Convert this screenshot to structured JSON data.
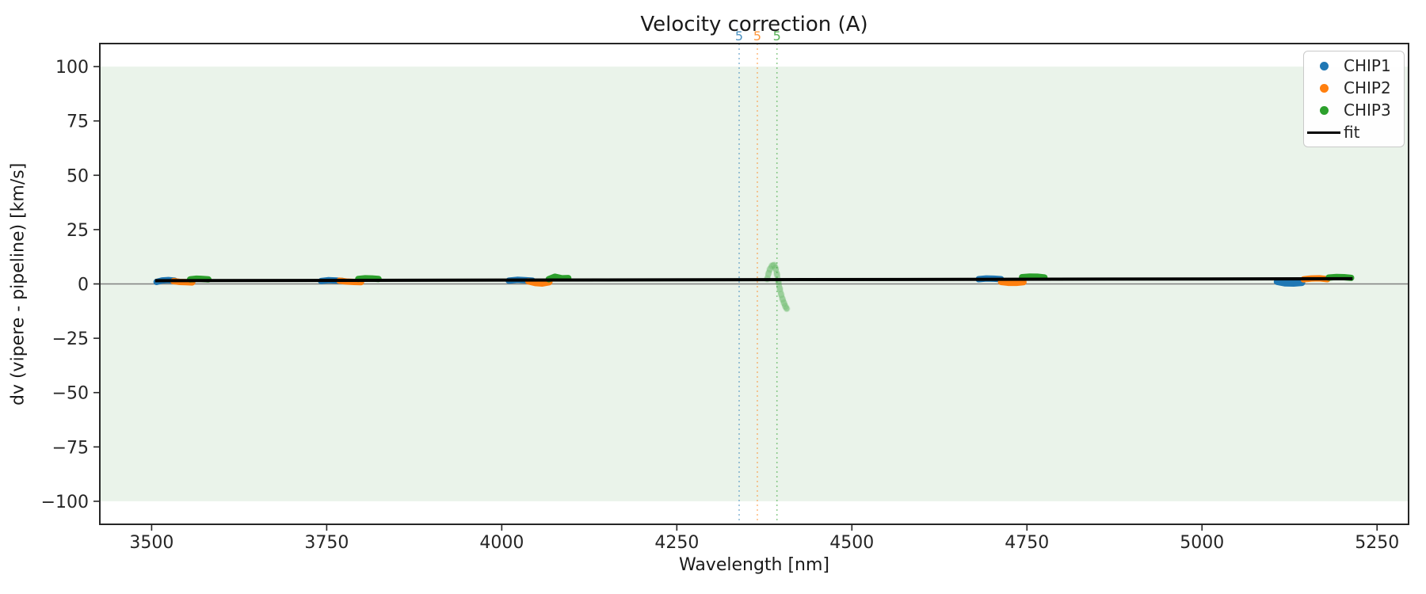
{
  "figure": {
    "background": "#ffffff"
  },
  "chart_data": {
    "type": "scatter",
    "title": "Velocity correction (A)",
    "xlabel": "Wavelength [nm]",
    "ylabel": "dv (vipere - pipeline) [km/s]",
    "xlim": [
      3426,
      5295
    ],
    "ylim": [
      -110.6,
      110.6
    ],
    "grid": false,
    "xticks": [
      {
        "value": 3500,
        "label": "3500"
      },
      {
        "value": 3750,
        "label": "3750"
      },
      {
        "value": 4000,
        "label": "4000"
      },
      {
        "value": 4250,
        "label": "4250"
      },
      {
        "value": 4500,
        "label": "4500"
      },
      {
        "value": 4750,
        "label": "4750"
      },
      {
        "value": 5000,
        "label": "5000"
      },
      {
        "value": 5250,
        "label": "5250"
      }
    ],
    "yticks": [
      {
        "value": 100,
        "label": "100"
      },
      {
        "value": 75,
        "label": "75"
      },
      {
        "value": 50,
        "label": "50"
      },
      {
        "value": 25,
        "label": "25"
      },
      {
        "value": 0,
        "label": "0"
      },
      {
        "value": -25,
        "label": "−25"
      },
      {
        "value": -50,
        "label": "−50"
      },
      {
        "value": -75,
        "label": "−75"
      },
      {
        "value": -100,
        "label": "−100"
      }
    ],
    "band": {
      "ymin": -100,
      "ymax": 100,
      "color": "#eaf3ea"
    },
    "zero_line": {
      "y": 0,
      "color": "#7f7f7f"
    },
    "order_markers": [
      {
        "label": "5",
        "x": 4339,
        "color": "#1f77b4"
      },
      {
        "label": "5",
        "x": 4365,
        "color": "#ff7f0e"
      },
      {
        "label": "5",
        "x": 4393,
        "color": "#2ca02c"
      }
    ],
    "series": [
      {
        "name": "CHIP1",
        "color": "#1f77b4",
        "marker": "dot",
        "segments": [
          {
            "x": [
              3507,
              3515,
              3524,
              3533
            ],
            "y": [
              0.9,
              1.6,
              1.8,
              1.5
            ]
          },
          {
            "x": [
              3742,
              3752,
              3762,
              3773
            ],
            "y": [
              1.3,
              1.7,
              1.6,
              1.4
            ]
          },
          {
            "x": [
              4010,
              4022,
              4033,
              4044
            ],
            "y": [
              1.5,
              1.9,
              1.7,
              1.5
            ]
          },
          {
            "x": [
              4681,
              4692,
              4703,
              4713
            ],
            "y": [
              2.2,
              2.5,
              2.4,
              2.2
            ]
          },
          {
            "x": [
              5107,
              5118,
              5131,
              5143
            ],
            "y": [
              1.0,
              0.3,
              0.2,
              0.5
            ]
          }
        ]
      },
      {
        "name": "CHIP2",
        "color": "#ff7f0e",
        "marker": "dot",
        "segments": [
          {
            "x": [
              3531,
              3540,
              3549,
              3558
            ],
            "y": [
              1.3,
              0.9,
              0.8,
              0.7
            ]
          },
          {
            "x": [
              3768,
              3778,
              3789,
              3799
            ],
            "y": [
              1.5,
              1.1,
              0.9,
              0.8
            ]
          },
          {
            "x": [
              4038,
              4048,
              4058,
              4068
            ],
            "y": [
              1.2,
              0.4,
              0.2,
              0.8
            ]
          },
          {
            "x": [
              4713,
              4724,
              4735,
              4745
            ],
            "y": [
              0.9,
              0.5,
              0.5,
              0.8
            ]
          },
          {
            "x": [
              5145,
              5156,
              5168,
              5179
            ],
            "y": [
              2.1,
              2.5,
              2.6,
              2.2
            ]
          }
        ]
      },
      {
        "name": "CHIP3",
        "color": "#2ca02c",
        "marker": "dot",
        "segments": [
          {
            "x": [
              3555,
              3564,
              3573,
              3581
            ],
            "y": [
              2.1,
              2.4,
              2.3,
              2.1
            ]
          },
          {
            "x": [
              3795,
              3805,
              3815,
              3824
            ],
            "y": [
              2.3,
              2.6,
              2.5,
              2.3
            ]
          },
          {
            "x": [
              4067,
              4076,
              4086,
              4095
            ],
            "y": [
              2.2,
              3.3,
              2.6,
              2.7
            ]
          },
          {
            "x": [
              4743,
              4754,
              4765,
              4775
            ],
            "y": [
              3.1,
              3.4,
              3.3,
              3.0
            ]
          },
          {
            "x": [
              5181,
              5192,
              5203,
              5213
            ],
            "y": [
              2.9,
              3.2,
              3.1,
              2.8
            ]
          }
        ],
        "outliers": {
          "x": [
            4379,
            4381,
            4383,
            4386,
            4389,
            4391,
            4393,
            4395,
            4397,
            4399,
            4401,
            4403,
            4405,
            4407
          ],
          "y": [
            2.3,
            4.8,
            6.8,
            8.4,
            8.7,
            7.2,
            4.5,
            1.2,
            -2.2,
            -4.8,
            -7.0,
            -8.8,
            -10.3,
            -11.4
          ]
        }
      },
      {
        "name": "fit",
        "color": "#000000",
        "type": "line",
        "x": [
          3505,
          5215
        ],
        "y": [
          1.5,
          2.4
        ]
      }
    ],
    "legend": {
      "position": "upper right",
      "items": [
        {
          "label": "CHIP1",
          "marker": "dot",
          "color": "#1f77b4"
        },
        {
          "label": "CHIP2",
          "marker": "dot",
          "color": "#ff7f0e"
        },
        {
          "label": "CHIP3",
          "marker": "dot",
          "color": "#2ca02c"
        },
        {
          "label": "fit",
          "marker": "line",
          "color": "#000000"
        }
      ]
    }
  }
}
